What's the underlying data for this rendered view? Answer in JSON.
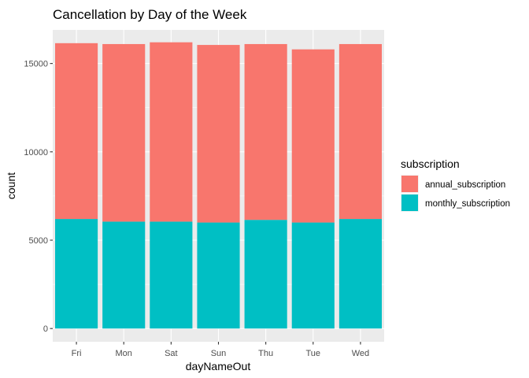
{
  "chart_data": {
    "type": "bar",
    "stacked": true,
    "title": "Cancellation by Day of the Week",
    "xlabel": "dayNameOut",
    "ylabel": "count",
    "categories": [
      "Fri",
      "Mon",
      "Sat",
      "Sun",
      "Thu",
      "Tue",
      "Wed"
    ],
    "series": [
      {
        "name": "monthly_subscription",
        "color": "#00BFC4",
        "values": [
          6200,
          6050,
          6050,
          6000,
          6150,
          6000,
          6200
        ]
      },
      {
        "name": "annual_subscription",
        "color": "#F8766D",
        "values": [
          9950,
          10050,
          10150,
          10050,
          9950,
          9800,
          9900
        ]
      }
    ],
    "ylim": [
      -750,
      16900
    ],
    "yticks": [
      0,
      5000,
      10000,
      15000
    ],
    "ytick_labels": [
      "0",
      "5000",
      "10000",
      "15000"
    ],
    "grid": true,
    "panel_background": "#EBEBEB",
    "legend": {
      "title": "subscription",
      "position": "right",
      "entries": [
        {
          "name": "annual_subscription",
          "color": "#F8766D"
        },
        {
          "name": "monthly_subscription",
          "color": "#00BFC4"
        }
      ]
    }
  }
}
